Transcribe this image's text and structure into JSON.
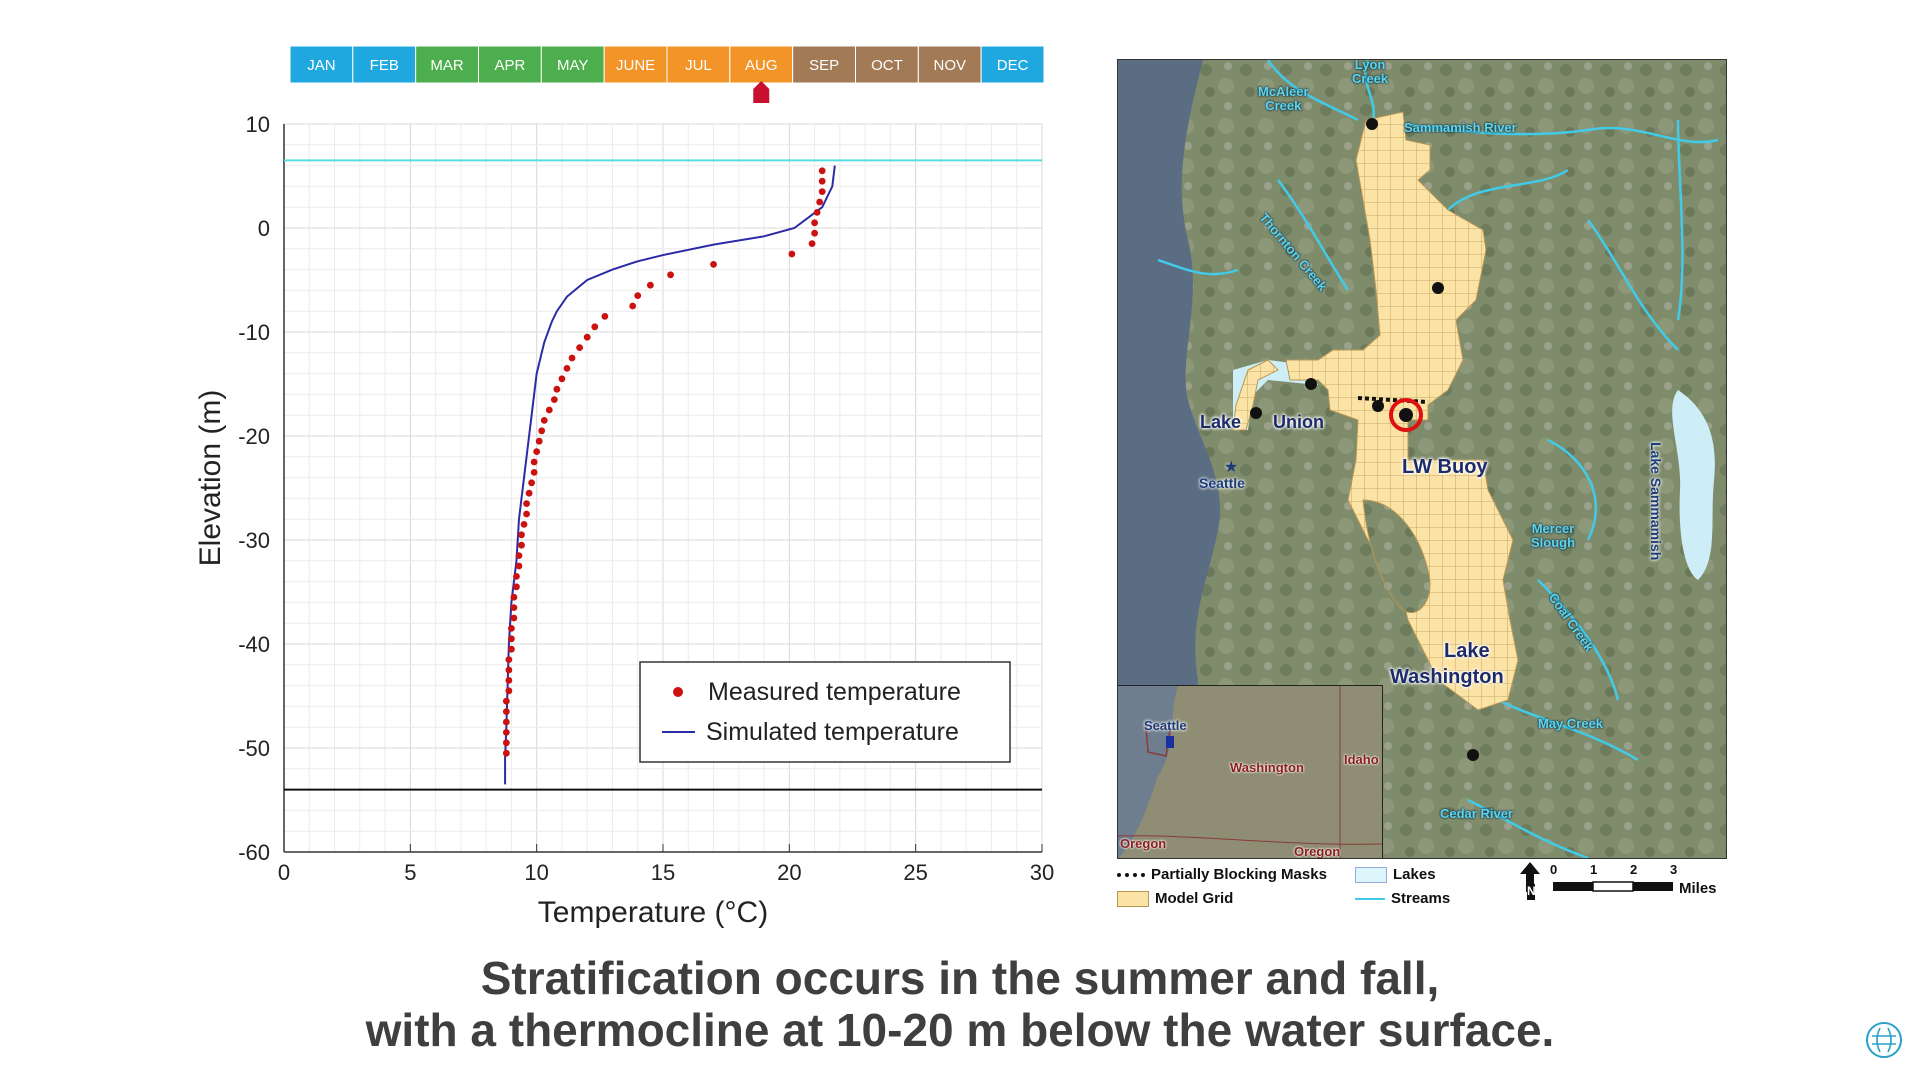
{
  "months": [
    {
      "label": "JAN",
      "color": "#1fa8e0"
    },
    {
      "label": "FEB",
      "color": "#1fa8e0"
    },
    {
      "label": "MAR",
      "color": "#4cae4c"
    },
    {
      "label": "APR",
      "color": "#4cae4c"
    },
    {
      "label": "MAY",
      "color": "#4cae4c"
    },
    {
      "label": "JUNE",
      "color": "#f39428"
    },
    {
      "label": "JUL",
      "color": "#f39428"
    },
    {
      "label": "AUG",
      "color": "#f39428"
    },
    {
      "label": "SEP",
      "color": "#a27a55"
    },
    {
      "label": "OCT",
      "color": "#a27a55"
    },
    {
      "label": "NOV",
      "color": "#a27a55"
    },
    {
      "label": "DEC",
      "color": "#1fa8e0"
    }
  ],
  "current_month_index": 7,
  "marker_color": "#c8102e",
  "chart_data": {
    "type": "scatter",
    "xlabel": "Temperature (°C)",
    "ylabel": "Elevation (m)",
    "xlim": [
      0,
      30
    ],
    "ylim": [
      -60,
      10
    ],
    "xticks": [
      0,
      5,
      10,
      15,
      20,
      25,
      30
    ],
    "yticks": [
      10,
      0,
      -10,
      -20,
      -30,
      -40,
      -50,
      -60
    ],
    "grid": true,
    "legend_position": "lower-right",
    "water_surface_elevation": 6.5,
    "lake_bottom_elevation": -54,
    "series": [
      {
        "name": "Measured temperature",
        "kind": "points",
        "color": "#cc1111",
        "points": [
          [
            21.3,
            5.5
          ],
          [
            21.3,
            4.5
          ],
          [
            21.3,
            3.5
          ],
          [
            21.2,
            2.5
          ],
          [
            21.1,
            1.5
          ],
          [
            21.0,
            0.5
          ],
          [
            21.0,
            -0.5
          ],
          [
            20.9,
            -1.5
          ],
          [
            20.1,
            -2.5
          ],
          [
            17.0,
            -3.5
          ],
          [
            15.3,
            -4.5
          ],
          [
            14.5,
            -5.5
          ],
          [
            14.0,
            -6.5
          ],
          [
            13.8,
            -7.5
          ],
          [
            12.7,
            -8.5
          ],
          [
            12.3,
            -9.5
          ],
          [
            12.0,
            -10.5
          ],
          [
            11.7,
            -11.5
          ],
          [
            11.4,
            -12.5
          ],
          [
            11.2,
            -13.5
          ],
          [
            11.0,
            -14.5
          ],
          [
            10.8,
            -15.5
          ],
          [
            10.7,
            -16.5
          ],
          [
            10.5,
            -17.5
          ],
          [
            10.3,
            -18.5
          ],
          [
            10.2,
            -19.5
          ],
          [
            10.1,
            -20.5
          ],
          [
            10.0,
            -21.5
          ],
          [
            9.9,
            -22.5
          ],
          [
            9.9,
            -23.5
          ],
          [
            9.8,
            -24.5
          ],
          [
            9.7,
            -25.5
          ],
          [
            9.6,
            -26.5
          ],
          [
            9.6,
            -27.5
          ],
          [
            9.5,
            -28.5
          ],
          [
            9.4,
            -29.5
          ],
          [
            9.4,
            -30.5
          ],
          [
            9.3,
            -31.5
          ],
          [
            9.3,
            -32.5
          ],
          [
            9.2,
            -33.5
          ],
          [
            9.2,
            -34.5
          ],
          [
            9.1,
            -35.5
          ],
          [
            9.1,
            -36.5
          ],
          [
            9.1,
            -37.5
          ],
          [
            9.0,
            -38.5
          ],
          [
            9.0,
            -39.5
          ],
          [
            9.0,
            -40.5
          ],
          [
            8.9,
            -41.5
          ],
          [
            8.9,
            -42.5
          ],
          [
            8.9,
            -43.5
          ],
          [
            8.9,
            -44.5
          ],
          [
            8.8,
            -45.5
          ],
          [
            8.8,
            -46.5
          ],
          [
            8.8,
            -47.5
          ],
          [
            8.8,
            -48.5
          ],
          [
            8.8,
            -49.5
          ],
          [
            8.8,
            -50.5
          ]
        ]
      },
      {
        "name": "Simulated temperature",
        "kind": "line",
        "color": "#2b2ba6",
        "points": [
          [
            21.8,
            6
          ],
          [
            21.7,
            4
          ],
          [
            21.3,
            2
          ],
          [
            20.2,
            0
          ],
          [
            19.0,
            -0.8
          ],
          [
            17.0,
            -1.6
          ],
          [
            15.0,
            -2.6
          ],
          [
            14.0,
            -3.2
          ],
          [
            13.0,
            -4.0
          ],
          [
            12.0,
            -5.0
          ],
          [
            11.2,
            -6.6
          ],
          [
            10.8,
            -8.0
          ],
          [
            10.6,
            -9.0
          ],
          [
            10.3,
            -11.0
          ],
          [
            10.0,
            -14.0
          ],
          [
            9.9,
            -16.0
          ],
          [
            9.8,
            -18.0
          ],
          [
            9.7,
            -20.0
          ],
          [
            9.5,
            -24.0
          ],
          [
            9.3,
            -28.0
          ],
          [
            9.2,
            -32.0
          ],
          [
            9.0,
            -36.0
          ],
          [
            8.9,
            -40.0
          ],
          [
            8.85,
            -44.0
          ],
          [
            8.8,
            -48.0
          ],
          [
            8.75,
            -51.0
          ],
          [
            8.75,
            -53.5
          ]
        ]
      }
    ]
  },
  "map": {
    "labels": {
      "lyon_creek": "Lyon\nCreek",
      "mcaleer_creek": "McAleer\nCreek",
      "sammamish_river": "Sammamish River",
      "thornton_creek": "Thornton Creek",
      "lake": "Lake",
      "union": "Union",
      "lw_buoy": "LW Buoy",
      "seattle": "Seattle",
      "lake_sammamish": "Lake Sammamish",
      "mercer_slough": "Mercer\nSlough",
      "coal_creek": "Coal Creek",
      "lake_washington_1": "Lake",
      "lake_washington_2": "Washington",
      "may_creek": "May Creek",
      "cedar_river": "Cedar River"
    },
    "inset": {
      "seattle": "Seattle",
      "washington": "Washington",
      "idaho": "Idaho",
      "oregon_left": "Oregon",
      "oregon_right": "Oregon"
    },
    "legend": {
      "partially_blocking_masks": "Partially Blocking Masks",
      "lakes": "Lakes",
      "model_grid": "Model Grid",
      "streams": "Streams"
    },
    "scale": {
      "ticks": [
        "0",
        "1",
        "2",
        "3"
      ],
      "unit": "Miles",
      "north": "N"
    },
    "colors": {
      "grid_fill": "#fbe3a6",
      "grid_line": "#b99654",
      "water": "#5b6d82",
      "lake": "#cdeef6",
      "stream": "#41cbe8",
      "buoy_ring": "#e01010"
    }
  },
  "caption": {
    "line1": "Stratification occurs in the summer and fall,",
    "line2": "with a thermocline at 10-20 m below the water surface."
  }
}
